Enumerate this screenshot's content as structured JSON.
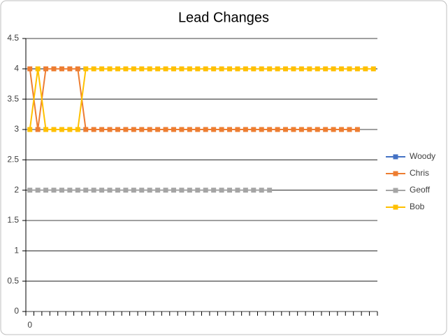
{
  "chart_data": {
    "type": "line",
    "title": "Lead Changes",
    "categories": [
      "0",
      null,
      null,
      null,
      null,
      null,
      null,
      null,
      null,
      null,
      null,
      null,
      null,
      null,
      null,
      null,
      null,
      null,
      null,
      null,
      null,
      null,
      null,
      null,
      null,
      null,
      null,
      null,
      null,
      null,
      null,
      null,
      null,
      null,
      null,
      null,
      null,
      null,
      null,
      null,
      null,
      null,
      null,
      null
    ],
    "series": [
      {
        "name": "Woody",
        "color": "#4472c4",
        "values": [
          null,
          null,
          null,
          null,
          null,
          null,
          null,
          null,
          null,
          null,
          null,
          null,
          null,
          null,
          null,
          null,
          null,
          null,
          null,
          null,
          null,
          null,
          null,
          null,
          null,
          null,
          null,
          null,
          null,
          null,
          null,
          null,
          null,
          null,
          null,
          null,
          null,
          null,
          null,
          null,
          null,
          null,
          null,
          null
        ]
      },
      {
        "name": "Chris",
        "color": "#ed7d31",
        "values": [
          4,
          3,
          4,
          4,
          4,
          4,
          4,
          3,
          3,
          3,
          3,
          3,
          3,
          3,
          3,
          3,
          3,
          3,
          3,
          3,
          3,
          3,
          3,
          3,
          3,
          3,
          3,
          3,
          3,
          3,
          3,
          3,
          3,
          3,
          3,
          3,
          3,
          3,
          3,
          3,
          3,
          3,
          null,
          null
        ]
      },
      {
        "name": "Geoff",
        "color": "#a5a5a5",
        "values": [
          2,
          2,
          2,
          2,
          2,
          2,
          2,
          2,
          2,
          2,
          2,
          2,
          2,
          2,
          2,
          2,
          2,
          2,
          2,
          2,
          2,
          2,
          2,
          2,
          2,
          2,
          2,
          2,
          2,
          2,
          2,
          null,
          null,
          null,
          null,
          null,
          null,
          null,
          null,
          null,
          null,
          null,
          null,
          null
        ]
      },
      {
        "name": "Bob",
        "color": "#ffc000",
        "values": [
          3,
          4,
          3,
          3,
          3,
          3,
          3,
          4,
          4,
          4,
          4,
          4,
          4,
          4,
          4,
          4,
          4,
          4,
          4,
          4,
          4,
          4,
          4,
          4,
          4,
          4,
          4,
          4,
          4,
          4,
          4,
          4,
          4,
          4,
          4,
          4,
          4,
          4,
          4,
          4,
          4,
          4,
          4,
          4
        ]
      }
    ],
    "ylim": [
      0,
      4.5
    ],
    "yticks": [
      0,
      0.5,
      1,
      1.5,
      2,
      2.5,
      3,
      3.5,
      4,
      4.5
    ],
    "grid": true,
    "legend": "right"
  }
}
